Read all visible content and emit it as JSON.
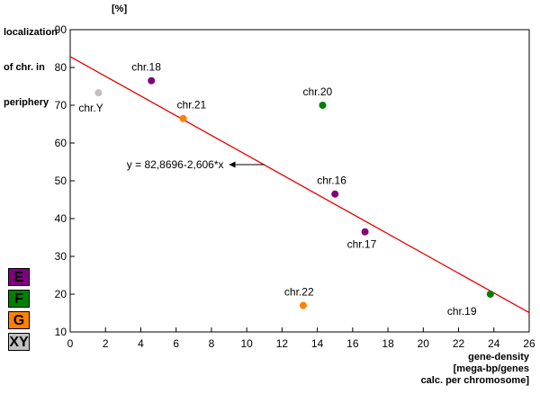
{
  "chart_data": {
    "type": "scatter",
    "ylabel_lines": [
      "localization",
      "of chr. in",
      "periphery"
    ],
    "ylabel_unit": "[%]",
    "xlabel_lines": [
      "gene-density",
      "[mega-bp/genes",
      "calc. per chromosome]"
    ],
    "xlim": [
      0,
      26
    ],
    "ylim": [
      10,
      90
    ],
    "x_ticks": [
      0,
      2,
      4,
      6,
      8,
      10,
      12,
      14,
      16,
      18,
      20,
      22,
      24,
      26
    ],
    "y_ticks": [
      10,
      20,
      30,
      40,
      50,
      60,
      70,
      80,
      90
    ],
    "grid": false,
    "points": [
      {
        "label": "chr.Y",
        "x": 1.6,
        "y": 73.3,
        "group": "XY"
      },
      {
        "label": "chr.18",
        "x": 4.6,
        "y": 76.5,
        "group": "E"
      },
      {
        "label": "chr.21",
        "x": 6.4,
        "y": 66.5,
        "group": "G"
      },
      {
        "label": "chr.20",
        "x": 14.3,
        "y": 70.0,
        "group": "F"
      },
      {
        "label": "chr.16",
        "x": 15.0,
        "y": 46.5,
        "group": "E"
      },
      {
        "label": "chr.17",
        "x": 16.7,
        "y": 36.5,
        "group": "E"
      },
      {
        "label": "chr.22",
        "x": 13.2,
        "y": 17.0,
        "group": "G"
      },
      {
        "label": "chr.19",
        "x": 23.8,
        "y": 20.0,
        "group": "F"
      }
    ],
    "regression": {
      "intercept": 82.8696,
      "slope": -2.606,
      "equation": "y = 82,8696-2,606*x",
      "color": "#e60000",
      "annotation_point": {
        "x": 11.0,
        "y": 54.3
      },
      "annotation_tail": {
        "x": 9.0,
        "y": 54.3
      }
    },
    "legend": [
      {
        "label": "E",
        "color": "#800080"
      },
      {
        "label": "F",
        "color": "#008000"
      },
      {
        "label": "G",
        "color": "#ff8000"
      },
      {
        "label": "XY",
        "color": "#c0c0c0"
      }
    ],
    "group_colors": {
      "E": "#800080",
      "F": "#008000",
      "G": "#ff8000",
      "XY": "#c0c0c0"
    }
  }
}
